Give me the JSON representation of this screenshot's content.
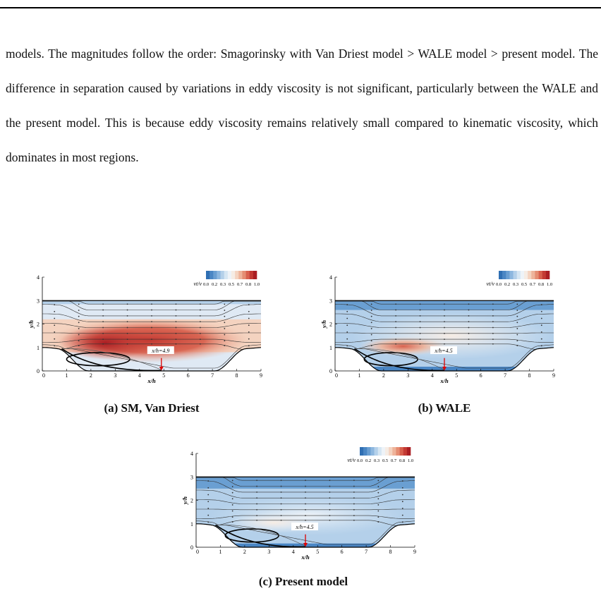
{
  "text": {
    "paragraph": "models. The magnitudes follow the order: Smagorinsky with Van Driest model > WALE model > present model. The difference in separation caused by variations in eddy viscosity is not significant, particularly between the WALE and the present model. This is because eddy viscosity remains relatively small compared to kinematic viscosity, which dominates in most regions."
  },
  "colorbar": {
    "label": "νt/ν",
    "ticks": [
      "0.0",
      "0.2",
      "0.3",
      "0.5",
      "0.7",
      "0.8",
      "1.0"
    ],
    "colors": [
      "#2f6fb3",
      "#4a86c4",
      "#6a9fd2",
      "#8db7df",
      "#b4d0ea",
      "#d6e6f3",
      "#eef3f8",
      "#f6ece4",
      "#f4d3c0",
      "#eeb39a",
      "#e58d72",
      "#d8604d",
      "#c43a33",
      "#aa1e23"
    ]
  },
  "panels": [
    {
      "id": "a",
      "caption": "(a) SM, Van Driest",
      "annotation": "x/h=4.9",
      "reattach": 4.9,
      "xlabel": "x/h",
      "ylabel": "y/h",
      "xticks": [
        "0",
        "1",
        "2",
        "3",
        "4",
        "5",
        "6",
        "7",
        "8",
        "9"
      ],
      "yticks": [
        "0",
        "1",
        "2",
        "3",
        "4"
      ],
      "field": "red-dominant"
    },
    {
      "id": "b",
      "caption": "(b) WALE",
      "annotation": "x/h=4.5",
      "reattach": 4.5,
      "xlabel": "x/h",
      "ylabel": "y/h",
      "xticks": [
        "0",
        "1",
        "2",
        "3",
        "4",
        "5",
        "6",
        "7",
        "8",
        "9"
      ],
      "yticks": [
        "0",
        "1",
        "2",
        "3",
        "4"
      ],
      "field": "mixed"
    },
    {
      "id": "c",
      "caption": "(c) Present model",
      "annotation": "x/h=4.5",
      "reattach": 4.5,
      "xlabel": "x/h",
      "ylabel": "y/h",
      "xticks": [
        "0",
        "1",
        "2",
        "3",
        "4",
        "5",
        "6",
        "7",
        "8",
        "9"
      ],
      "yticks": [
        "0",
        "1",
        "2",
        "3",
        "4"
      ],
      "field": "blue-dominant"
    }
  ]
}
